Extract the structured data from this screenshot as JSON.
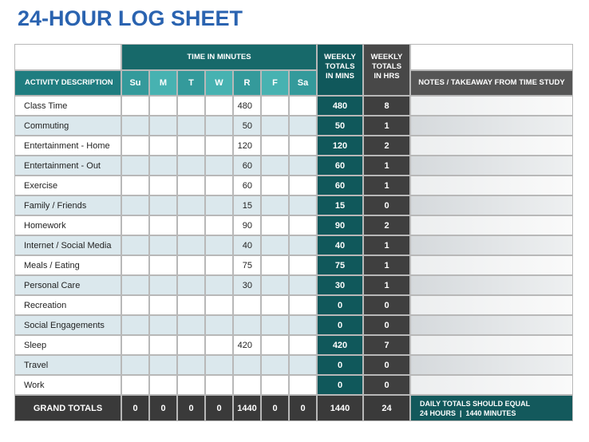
{
  "title": "24-HOUR LOG SHEET",
  "header": {
    "time_in_minutes": "TIME IN MINUTES",
    "activity": "ACTIVITY DESCRIPTION",
    "days": [
      "Su",
      "M",
      "T",
      "W",
      "R",
      "F",
      "Sa"
    ],
    "weekly_mins": "WEEKLY TOTALS IN MINS",
    "weekly_hrs": "WEEKLY TOTALS IN HRS",
    "notes": "NOTES / TAKEAWAY FROM TIME STUDY"
  },
  "rows": [
    {
      "activity": "Class Time",
      "days": [
        null,
        null,
        null,
        null,
        480,
        null,
        null
      ],
      "weekly_mins": 480,
      "weekly_hrs": 8
    },
    {
      "activity": "Commuting",
      "days": [
        null,
        null,
        null,
        null,
        50,
        null,
        null
      ],
      "weekly_mins": 50,
      "weekly_hrs": 1
    },
    {
      "activity": "Entertainment - Home",
      "days": [
        null,
        null,
        null,
        null,
        120,
        null,
        null
      ],
      "weekly_mins": 120,
      "weekly_hrs": 2
    },
    {
      "activity": "Entertainment - Out",
      "days": [
        null,
        null,
        null,
        null,
        60,
        null,
        null
      ],
      "weekly_mins": 60,
      "weekly_hrs": 1
    },
    {
      "activity": "Exercise",
      "days": [
        null,
        null,
        null,
        null,
        60,
        null,
        null
      ],
      "weekly_mins": 60,
      "weekly_hrs": 1
    },
    {
      "activity": "Family / Friends",
      "days": [
        null,
        null,
        null,
        null,
        15,
        null,
        null
      ],
      "weekly_mins": 15,
      "weekly_hrs": 0
    },
    {
      "activity": "Homework",
      "days": [
        null,
        null,
        null,
        null,
        90,
        null,
        null
      ],
      "weekly_mins": 90,
      "weekly_hrs": 2
    },
    {
      "activity": "Internet / Social Media",
      "days": [
        null,
        null,
        null,
        null,
        40,
        null,
        null
      ],
      "weekly_mins": 40,
      "weekly_hrs": 1
    },
    {
      "activity": "Meals / Eating",
      "days": [
        null,
        null,
        null,
        null,
        75,
        null,
        null
      ],
      "weekly_mins": 75,
      "weekly_hrs": 1
    },
    {
      "activity": "Personal Care",
      "days": [
        null,
        null,
        null,
        null,
        30,
        null,
        null
      ],
      "weekly_mins": 30,
      "weekly_hrs": 1
    },
    {
      "activity": "Recreation",
      "days": [
        null,
        null,
        null,
        null,
        null,
        null,
        null
      ],
      "weekly_mins": 0,
      "weekly_hrs": 0
    },
    {
      "activity": "Social Engagements",
      "days": [
        null,
        null,
        null,
        null,
        null,
        null,
        null
      ],
      "weekly_mins": 0,
      "weekly_hrs": 0
    },
    {
      "activity": "Sleep",
      "days": [
        null,
        null,
        null,
        null,
        420,
        null,
        null
      ],
      "weekly_mins": 420,
      "weekly_hrs": 7
    },
    {
      "activity": "Travel",
      "days": [
        null,
        null,
        null,
        null,
        null,
        null,
        null
      ],
      "weekly_mins": 0,
      "weekly_hrs": 0
    },
    {
      "activity": "Work",
      "days": [
        null,
        null,
        null,
        null,
        null,
        null,
        null
      ],
      "weekly_mins": 0,
      "weekly_hrs": 0
    }
  ],
  "totals": {
    "label": "GRAND TOTALS",
    "days": [
      0,
      0,
      0,
      0,
      1440,
      0,
      0
    ],
    "weekly_mins": 1440,
    "weekly_hrs": 24,
    "note": [
      "DAILY TOTALS SHOULD EQUAL",
      "24 HOURS  |  1440 MINUTES"
    ]
  }
}
